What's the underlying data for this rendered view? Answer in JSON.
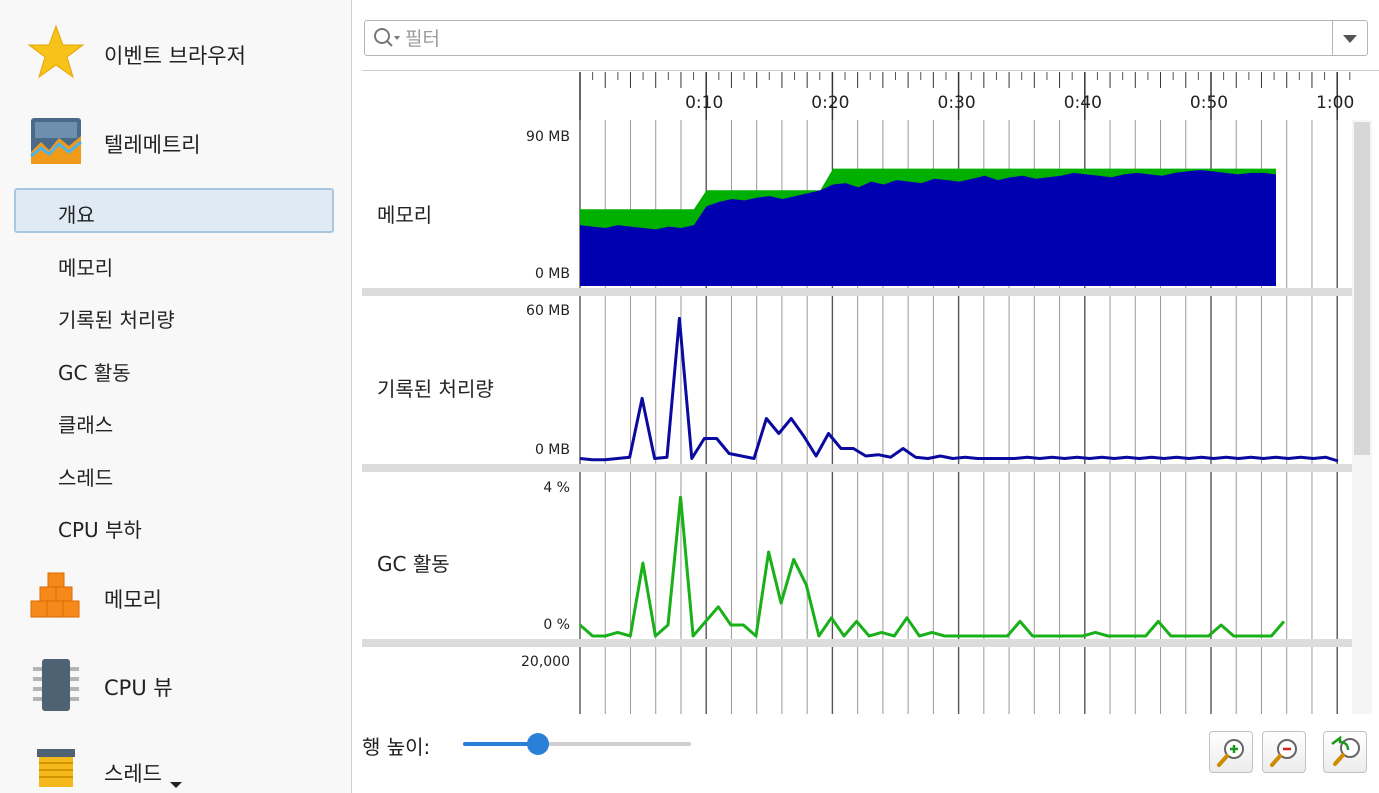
{
  "sidebar": {
    "categories": [
      {
        "label": "이벤트 브라우저",
        "icon": "star-icon"
      },
      {
        "label": "텔레메트리",
        "icon": "telemetry-icon"
      },
      {
        "label": "메모리",
        "icon": "memory-cubes-icon"
      },
      {
        "label": "CPU 뷰",
        "icon": "cpu-chip-icon"
      },
      {
        "label": "스레드",
        "icon": "thread-spool-icon"
      }
    ],
    "telemetry_items": [
      "개요",
      "메모리",
      "기록된 처리량",
      "GC 활동",
      "클래스",
      "스레드",
      "CPU 부하"
    ],
    "selected_item": "개요"
  },
  "filter": {
    "placeholder": "필터",
    "value": ""
  },
  "timeline": {
    "tick_labels": [
      "0:10",
      "0:20",
      "0:30",
      "0:40",
      "0:50",
      "1:00"
    ]
  },
  "rows": [
    {
      "label": "메모리",
      "y_max": "90 MB",
      "y_min": "0 MB"
    },
    {
      "label": "기록된 처리량",
      "y_max": "60 MB",
      "y_min": "0 MB"
    },
    {
      "label": "GC 활동",
      "y_max": "4 %",
      "y_min": "0 %"
    },
    {
      "label": "",
      "y_max": "20,000",
      "y_min": ""
    }
  ],
  "footer": {
    "row_height_label": "행 높이:",
    "row_height_value": 0.33
  },
  "colors": {
    "heap_free": "#00b000",
    "heap_used": "#0000b0",
    "throughput": "#0a0aa0",
    "gc": "#19b019",
    "accent": "#2a7fd6"
  },
  "chart_data": [
    {
      "type": "area",
      "title": "메모리",
      "xlabel": "",
      "ylabel": "",
      "ylim": [
        0,
        90
      ],
      "x": [
        0,
        1,
        2,
        3,
        4,
        5,
        6,
        7,
        8,
        9,
        10,
        11,
        12,
        13,
        14,
        15,
        16,
        17,
        18,
        19,
        20,
        21,
        22,
        23,
        24,
        25,
        26,
        27,
        28,
        29,
        30,
        31,
        32,
        33,
        34,
        35,
        36,
        37,
        38,
        39,
        40,
        41,
        42,
        43,
        44,
        45,
        46,
        47,
        48,
        49,
        50,
        51,
        52,
        53,
        54,
        55
      ],
      "series": [
        {
          "values": [
            53,
            53,
            53,
            53,
            53,
            53,
            53,
            53,
            53,
            53,
            66,
            66,
            66,
            66,
            66,
            66,
            66,
            66,
            66,
            66,
            81,
            81,
            81,
            81,
            81,
            81,
            81,
            81,
            81,
            81,
            81,
            81,
            81,
            81,
            81,
            81,
            81,
            81,
            81,
            81,
            81,
            81,
            81,
            81,
            81,
            81,
            81,
            81,
            81,
            81,
            81,
            81,
            81,
            81,
            81,
            81
          ]
        },
        {
          "values": [
            42,
            41,
            40,
            42,
            41,
            40,
            39,
            41,
            40,
            42,
            55,
            58,
            60,
            59,
            61,
            62,
            60,
            62,
            64,
            66,
            70,
            71,
            68,
            72,
            70,
            73,
            72,
            71,
            74,
            73,
            72,
            74,
            76,
            73,
            75,
            76,
            74,
            75,
            76,
            78,
            77,
            76,
            75,
            77,
            78,
            77,
            76,
            78,
            79,
            80,
            79,
            78,
            77,
            78,
            78,
            77
          ]
        }
      ]
    },
    {
      "type": "line",
      "title": "기록된 처리량",
      "xlabel": "",
      "ylabel": "",
      "ylim": [
        0,
        60
      ],
      "x": [
        0,
        1,
        2,
        3,
        4,
        5,
        6,
        7,
        8,
        9,
        10,
        11,
        12,
        13,
        14,
        15,
        16,
        17,
        18,
        19,
        20,
        21,
        22,
        23,
        24,
        25,
        26,
        27,
        28,
        29,
        30,
        31,
        32,
        33,
        34,
        35,
        36,
        37,
        38,
        39,
        40,
        41,
        42,
        43,
        44,
        45,
        46,
        47,
        48,
        49,
        50,
        51,
        52,
        53,
        54,
        55,
        56,
        57,
        58,
        59,
        60,
        61
      ],
      "series": [
        {
          "values": [
            1,
            0.5,
            0.5,
            1,
            1.5,
            25,
            1,
            1.5,
            57,
            1,
            9,
            9,
            3,
            2,
            1,
            17,
            11,
            17,
            10,
            2,
            11,
            5,
            5,
            2,
            2.5,
            1.5,
            5,
            1.5,
            1,
            2,
            1,
            1.5,
            1,
            1,
            1,
            1,
            1.5,
            1,
            1.5,
            1,
            1.5,
            1,
            1.5,
            1,
            1.5,
            1,
            1.5,
            1,
            1.5,
            1,
            1.5,
            1,
            1.5,
            1,
            1.5,
            1,
            1.5,
            1,
            1.5,
            1,
            1.5,
            0
          ]
        }
      ]
    },
    {
      "type": "line",
      "title": "GC 활동",
      "xlabel": "",
      "ylabel": "",
      "ylim": [
        0,
        4
      ],
      "x": [
        0,
        1,
        2,
        3,
        4,
        5,
        6,
        7,
        8,
        9,
        10,
        11,
        12,
        13,
        14,
        15,
        16,
        17,
        18,
        19,
        20,
        21,
        22,
        23,
        24,
        25,
        26,
        27,
        28,
        29,
        30,
        31,
        32,
        33,
        34,
        35,
        36,
        37,
        38,
        39,
        40,
        41,
        42,
        43,
        44,
        45,
        46,
        47,
        48,
        49,
        50,
        51,
        52,
        53,
        54,
        55,
        56
      ],
      "series": [
        {
          "values": [
            0.3,
            0,
            0,
            0.1,
            0,
            2,
            0,
            0.3,
            3.8,
            0,
            0.4,
            0.8,
            0.3,
            0.3,
            0,
            2.3,
            0.9,
            2.1,
            1.4,
            0,
            0.5,
            0,
            0.4,
            0,
            0.1,
            0,
            0.5,
            0,
            0.1,
            0,
            0,
            0,
            0,
            0,
            0,
            0.4,
            0,
            0,
            0,
            0,
            0,
            0.1,
            0,
            0,
            0,
            0,
            0.4,
            0,
            0,
            0,
            0,
            0.3,
            0,
            0,
            0,
            0,
            0.4
          ]
        }
      ]
    }
  ]
}
